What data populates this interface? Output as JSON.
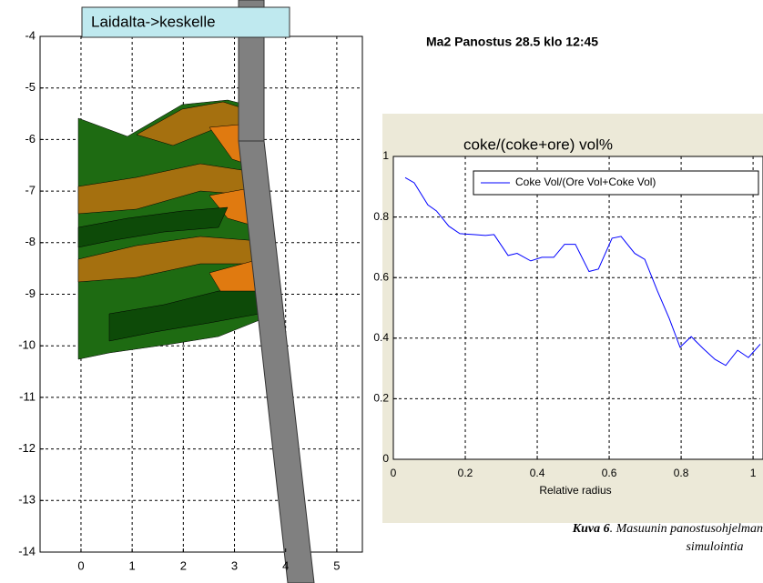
{
  "label_box": "Laidalta->keskelle",
  "heading": "Ma2 Panostus 28.5 klo 12:45",
  "caption": {
    "label": "Kuva 6",
    "text": ". Masuunin panostusohjelman",
    "text2": "simulointia"
  },
  "chart_data": [
    {
      "type": "layers",
      "xlim": [
        -0.8,
        5.5
      ],
      "ylim": [
        -14,
        -4
      ],
      "xticks": [
        0,
        1,
        2,
        3,
        4,
        5
      ],
      "yticks": [
        -4,
        -5,
        -6,
        -7,
        -8,
        -9,
        -10,
        -11,
        -12,
        -13,
        -14
      ],
      "grid": true
    },
    {
      "type": "line",
      "title": "coke/(coke+ore) vol%",
      "xlabel": "Relative radius",
      "x": [
        0.033,
        0.058,
        0.096,
        0.12,
        0.154,
        0.185,
        0.223,
        0.256,
        0.28,
        0.319,
        0.344,
        0.382,
        0.413,
        0.446,
        0.476,
        0.506,
        0.544,
        0.57,
        0.608,
        0.633,
        0.671,
        0.699,
        0.734,
        0.767,
        0.797,
        0.828,
        0.861,
        0.894,
        0.924,
        0.957,
        0.987,
        1.02
      ],
      "series": [
        {
          "name": "Coke Vol/(Ore Vol+Coke Vol)",
          "color": "#0000ff",
          "values": [
            0.93,
            0.913,
            0.84,
            0.82,
            0.77,
            0.745,
            0.742,
            0.739,
            0.742,
            0.673,
            0.68,
            0.655,
            0.667,
            0.667,
            0.71,
            0.71,
            0.62,
            0.628,
            0.73,
            0.736,
            0.68,
            0.66,
            0.556,
            0.465,
            0.37,
            0.405,
            0.366,
            0.33,
            0.31,
            0.36,
            0.336,
            0.38
          ]
        }
      ],
      "xlim": [
        0,
        1.02
      ],
      "ylim": [
        0,
        1
      ],
      "xticks": [
        0,
        0.2,
        0.4,
        0.6,
        0.8,
        1
      ],
      "yticks": [
        0,
        0.2,
        0.4,
        0.6,
        0.8,
        1
      ],
      "grid": true,
      "legend": "upper right"
    }
  ]
}
